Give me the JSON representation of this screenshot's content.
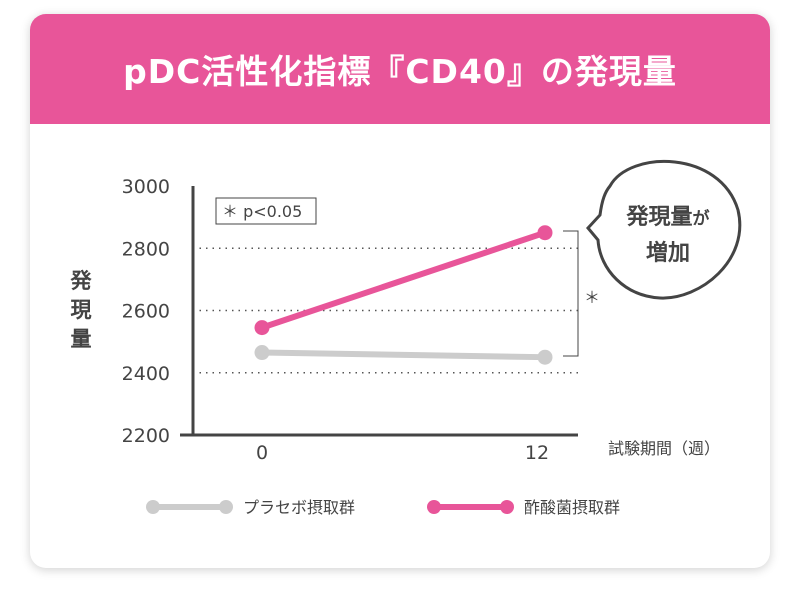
{
  "title": "pDC活性化指標『CD40』の発現量",
  "chart_data": {
    "type": "line",
    "title": "pDC活性化指標『CD40』の発現量",
    "xlabel": "試験期間（週）",
    "ylabel": "発現量",
    "x": [
      0,
      12
    ],
    "x_tick_labels": [
      "0",
      "12"
    ],
    "ylim": [
      2200,
      3000
    ],
    "y_ticks": [
      2200,
      2400,
      2600,
      2800,
      3000
    ],
    "y_tick_labels": [
      "2200",
      "2400",
      "2600",
      "2800",
      "3000"
    ],
    "grid": "dotted horizontal at 2400, 2600, 2800",
    "series": [
      {
        "name": "プラセボ摂取群",
        "values": [
          2465,
          2450
        ],
        "color": "#cccccc"
      },
      {
        "name": "酢酸菌摂取群",
        "values": [
          2545,
          2850
        ],
        "color": "#e85599"
      }
    ],
    "annotations": {
      "significance_note": "＊ p<0.05",
      "significance_mark": "＊",
      "callout_line1": "発現量",
      "callout_line1_small": "が",
      "callout_line2": "増加"
    },
    "legend_placement": "bottom"
  }
}
